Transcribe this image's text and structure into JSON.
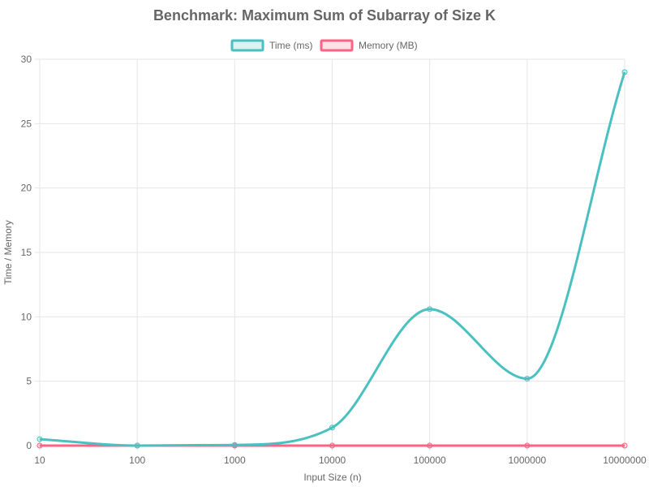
{
  "chart_data": {
    "type": "line",
    "title": "Benchmark: Maximum Sum of Subarray of Size K",
    "xlabel": "Input Size (n)",
    "ylabel": "Time / Memory",
    "categories": [
      "10",
      "100",
      "1000",
      "10000",
      "100000",
      "1000000",
      "10000000"
    ],
    "ylim": [
      0,
      30
    ],
    "yticks": [
      0,
      5,
      10,
      15,
      20,
      25,
      30
    ],
    "grid": true,
    "legend_position": "top",
    "series": [
      {
        "name": "Time (ms)",
        "values": [
          0.5,
          0.0,
          0.05,
          1.4,
          10.6,
          5.2,
          29.0
        ],
        "color": "#4bc0c0",
        "fill": "rgba(75,192,192,0.2)"
      },
      {
        "name": "Memory (MB)",
        "values": [
          0.0,
          0.0,
          0.0,
          0.0,
          0.0,
          0.0,
          0.0
        ],
        "color": "#ff6384",
        "fill": "rgba(255,99,132,0.2)"
      }
    ]
  }
}
